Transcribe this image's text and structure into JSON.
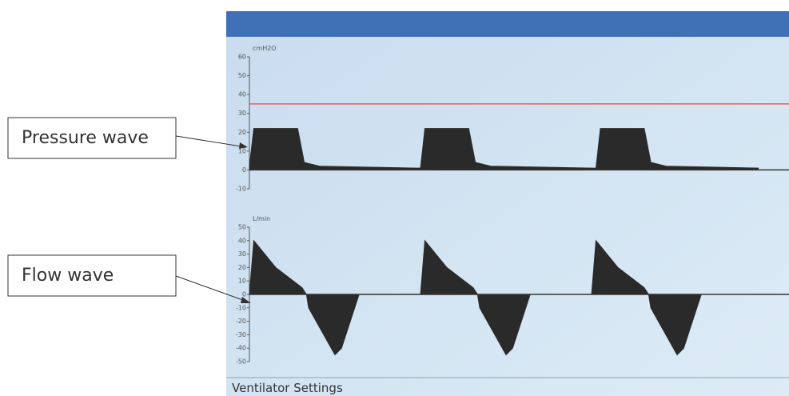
{
  "callouts": [
    "Pressure wave",
    "Flow wave"
  ],
  "footer": "Ventilator Settings",
  "chart_data": [
    {
      "type": "area",
      "y_label": "cmH2O",
      "color": "#2a2a2a",
      "x": [
        0,
        0.1,
        1.1,
        1.25,
        1.6,
        3.8,
        3.9,
        4.0,
        5.0,
        5.15,
        5.5,
        7.8,
        7.9,
        8.0,
        9.0,
        9.15,
        9.5,
        11.6
      ],
      "values": [
        2,
        22,
        22,
        4,
        2,
        1,
        1,
        22,
        22,
        4,
        2,
        1,
        1,
        22,
        22,
        4,
        2,
        1
      ],
      "xlim": [
        0,
        12.3
      ],
      "ylim": [
        -10,
        60
      ],
      "yticks": [
        60,
        50,
        40,
        30,
        20,
        10,
        0,
        -10
      ],
      "threshold": 35,
      "threshold_color": "#e06060"
    },
    {
      "type": "area",
      "y_label": "L/min",
      "color": "#2a2a2a",
      "x": [
        0,
        0.1,
        0.6,
        1.2,
        1.3,
        1.35,
        1.95,
        2.1,
        2.5,
        3.9,
        4.0,
        4.5,
        5.1,
        5.2,
        5.25,
        5.85,
        6.0,
        6.4,
        7.8,
        7.9,
        8.4,
        9.0,
        9.1,
        9.15,
        9.75,
        9.9,
        10.3,
        11.6
      ],
      "values": [
        0,
        40,
        20,
        5,
        0,
        -10,
        -45,
        -40,
        0,
        0,
        40,
        20,
        5,
        0,
        -10,
        -45,
        -40,
        0,
        0,
        40,
        20,
        5,
        0,
        -10,
        -45,
        -40,
        0,
        0
      ],
      "xlim": [
        0,
        12.3
      ],
      "ylim": [
        -50,
        50
      ],
      "yticks": [
        50,
        40,
        30,
        20,
        10,
        0,
        -10,
        -20,
        -30,
        -40,
        -50
      ]
    }
  ]
}
